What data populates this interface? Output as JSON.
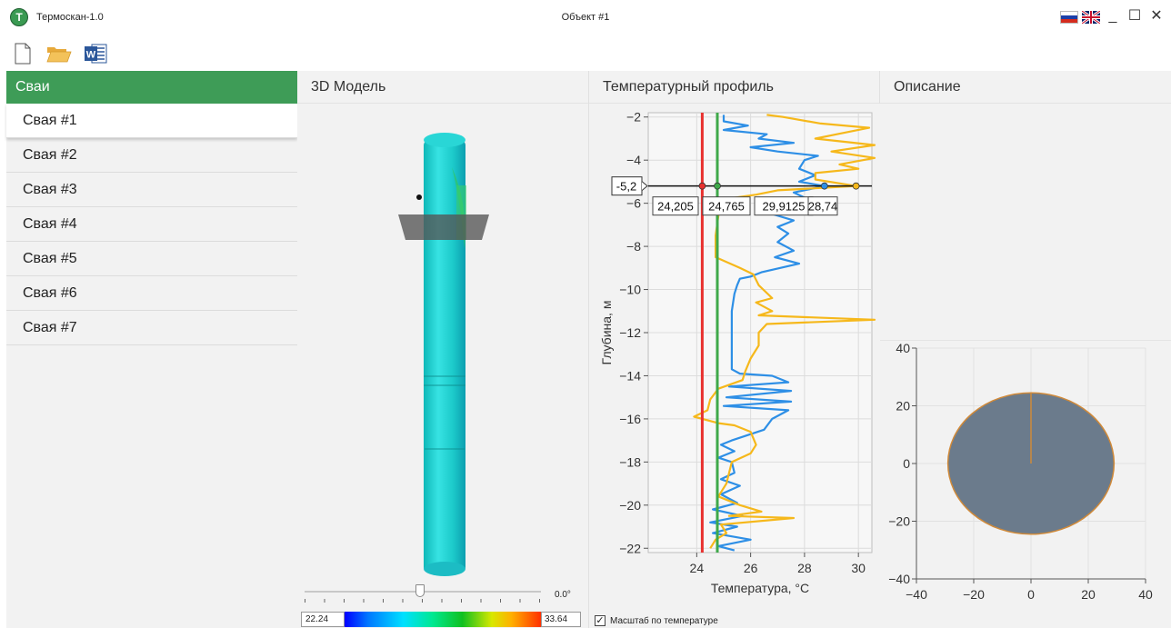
{
  "app": {
    "logo_letter": "T",
    "name": "Термоскан-1.0",
    "window_title": "Объект #1"
  },
  "window_controls": {
    "minimize": "_",
    "maximize": "☐",
    "close": "✕"
  },
  "toolbar": {
    "icons": [
      "new-file-icon",
      "open-folder-icon",
      "word-export-icon"
    ],
    "word_letter": "W"
  },
  "sidebar": {
    "header": "Сваи",
    "items": [
      {
        "label": "Свая #1",
        "selected": true
      },
      {
        "label": "Свая #2"
      },
      {
        "label": "Свая #3"
      },
      {
        "label": "Свая #4"
      },
      {
        "label": "Свая #5"
      },
      {
        "label": "Свая #6"
      },
      {
        "label": "Свая #7"
      }
    ]
  },
  "model3d": {
    "header": "3D Модель",
    "rotation_value": "0.0°",
    "colorbar": {
      "min": "22.24",
      "max": "33.64"
    }
  },
  "profile": {
    "header": "Температурный профиль",
    "scale_checkbox": {
      "label": "Масштаб по температуре",
      "checked": true
    }
  },
  "description": {
    "header": "Описание"
  },
  "colors": {
    "accent_green": "#3e9c57",
    "red_line": "#e8312f",
    "green_line": "#3fa94a",
    "blue_series": "#2e8fe6",
    "yellow_series": "#f6b81b",
    "section_fill": "#6b7b8c",
    "section_outline": "#d08a3a"
  },
  "chart_data": [
    {
      "type": "line",
      "title": "",
      "xlabel": "Температура, °C",
      "ylabel": "Глубина, м",
      "xlim": [
        22.2,
        30.5
      ],
      "ylim": [
        -22.2,
        -1.8
      ],
      "xticks": [
        24,
        26,
        28,
        30
      ],
      "yticks": [
        -2,
        -4,
        -6,
        -8,
        -10,
        -12,
        -14,
        -16,
        -18,
        -20,
        -22
      ],
      "grid": true,
      "cursor": {
        "depth": -5.2,
        "depth_label": "-5,2",
        "readouts": [
          "24,205",
          "24,765",
          "29,9125",
          "28,74"
        ]
      },
      "series": [
        {
          "color": "#e8312f",
          "points": [
            [
              24.205,
              -1.8
            ],
            [
              24.205,
              -22.2
            ]
          ]
        },
        {
          "color": "#3fa94a",
          "points": [
            [
              24.765,
              -1.8
            ],
            [
              24.765,
              -22.2
            ]
          ]
        },
        {
          "color": "#2e8fe6",
          "points": [
            [
              25.0,
              -1.9
            ],
            [
              25.0,
              -2.2
            ],
            [
              25.9,
              -2.4
            ],
            [
              25.0,
              -2.6
            ],
            [
              26.6,
              -2.8
            ],
            [
              26.3,
              -3.0
            ],
            [
              27.6,
              -3.2
            ],
            [
              26.0,
              -3.4
            ],
            [
              27.0,
              -3.6
            ],
            [
              28.5,
              -3.8
            ],
            [
              28.0,
              -4.0
            ],
            [
              27.8,
              -4.4
            ],
            [
              28.4,
              -4.7
            ],
            [
              27.8,
              -5.0
            ],
            [
              28.74,
              -5.2
            ],
            [
              27.6,
              -5.5
            ],
            [
              28.1,
              -5.8
            ],
            [
              27.3,
              -6.1
            ],
            [
              26.8,
              -6.5
            ],
            [
              27.6,
              -6.8
            ],
            [
              27.0,
              -7.1
            ],
            [
              27.4,
              -7.4
            ],
            [
              27.0,
              -7.8
            ],
            [
              27.6,
              -8.2
            ],
            [
              26.9,
              -8.5
            ],
            [
              27.8,
              -8.8
            ],
            [
              26.4,
              -9.2
            ],
            [
              26.0,
              -9.4
            ],
            [
              25.6,
              -9.5
            ],
            [
              25.5,
              -9.8
            ],
            [
              25.4,
              -10.2
            ],
            [
              25.3,
              -11.0
            ],
            [
              25.3,
              -12.0
            ],
            [
              25.3,
              -13.0
            ],
            [
              25.3,
              -13.7
            ],
            [
              25.6,
              -13.9
            ],
            [
              26.8,
              -14.0
            ],
            [
              27.4,
              -14.3
            ],
            [
              25.2,
              -14.5
            ],
            [
              27.5,
              -14.7
            ],
            [
              25.1,
              -15.0
            ],
            [
              27.5,
              -15.2
            ],
            [
              25.0,
              -15.4
            ],
            [
              27.4,
              -15.6
            ],
            [
              26.8,
              -16.0
            ],
            [
              26.5,
              -16.5
            ],
            [
              25.3,
              -17.0
            ],
            [
              24.9,
              -17.2
            ],
            [
              25.4,
              -17.5
            ],
            [
              24.8,
              -17.8
            ],
            [
              25.3,
              -18.0
            ],
            [
              25.4,
              -18.5
            ],
            [
              24.9,
              -18.8
            ],
            [
              25.6,
              -19.1
            ],
            [
              24.9,
              -19.5
            ],
            [
              25.5,
              -19.9
            ],
            [
              24.6,
              -20.2
            ],
            [
              25.7,
              -20.5
            ],
            [
              24.5,
              -20.8
            ],
            [
              25.5,
              -21.0
            ],
            [
              24.6,
              -21.3
            ],
            [
              26.0,
              -21.6
            ],
            [
              24.8,
              -21.9
            ],
            [
              25.4,
              -22.1
            ]
          ]
        },
        {
          "color": "#f6b81b",
          "points": [
            [
              26.6,
              -1.9
            ],
            [
              27.2,
              -2.0
            ],
            [
              28.6,
              -2.3
            ],
            [
              30.4,
              -2.5
            ],
            [
              29.2,
              -2.8
            ],
            [
              28.4,
              -3.0
            ],
            [
              30.6,
              -3.3
            ],
            [
              29.0,
              -3.6
            ],
            [
              30.6,
              -3.9
            ],
            [
              29.3,
              -4.2
            ],
            [
              30.0,
              -4.4
            ],
            [
              28.4,
              -4.6
            ],
            [
              28.4,
              -4.9
            ],
            [
              29.9125,
              -5.2
            ],
            [
              27.0,
              -5.4
            ],
            [
              26.2,
              -5.6
            ],
            [
              25.1,
              -5.8
            ],
            [
              24.9,
              -6.0
            ],
            [
              24.8,
              -6.6
            ],
            [
              24.7,
              -7.5
            ],
            [
              24.7,
              -8.5
            ],
            [
              25.6,
              -9.0
            ],
            [
              26.1,
              -9.3
            ],
            [
              26.3,
              -9.8
            ],
            [
              26.8,
              -10.4
            ],
            [
              26.2,
              -10.6
            ],
            [
              26.8,
              -11.0
            ],
            [
              26.3,
              -11.2
            ],
            [
              30.6,
              -11.4
            ],
            [
              26.6,
              -11.6
            ],
            [
              26.3,
              -12.0
            ],
            [
              26.3,
              -12.6
            ],
            [
              26.0,
              -13.2
            ],
            [
              25.8,
              -13.8
            ],
            [
              25.7,
              -14.2
            ],
            [
              24.8,
              -14.6
            ],
            [
              24.5,
              -15.1
            ],
            [
              24.4,
              -15.6
            ],
            [
              23.9,
              -15.9
            ],
            [
              24.8,
              -16.2
            ],
            [
              25.4,
              -16.3
            ],
            [
              26.0,
              -16.6
            ],
            [
              26.2,
              -17.2
            ],
            [
              26.0,
              -17.6
            ],
            [
              25.3,
              -18.0
            ],
            [
              25.1,
              -19.0
            ],
            [
              24.8,
              -19.6
            ],
            [
              25.6,
              -20.0
            ],
            [
              26.4,
              -20.3
            ],
            [
              25.2,
              -20.5
            ],
            [
              27.6,
              -20.6
            ],
            [
              24.9,
              -20.9
            ],
            [
              25.1,
              -21.3
            ],
            [
              24.7,
              -21.6
            ],
            [
              24.5,
              -22.0
            ]
          ]
        }
      ]
    },
    {
      "type": "scatter",
      "xlim": [
        -40,
        40
      ],
      "ylim": [
        -40,
        40
      ],
      "xticks": [
        -40,
        -20,
        0,
        20,
        40
      ],
      "yticks": [
        40,
        20,
        0,
        -20,
        -40
      ],
      "grid": true,
      "shape": {
        "kind": "ellipse",
        "center": [
          0,
          0
        ],
        "radius_x": 29,
        "radius_y": 24.5
      },
      "series": [
        {
          "color": "#d08a3a",
          "points": [
            [
              0,
              0
            ],
            [
              0,
              24.5
            ]
          ]
        }
      ]
    }
  ]
}
